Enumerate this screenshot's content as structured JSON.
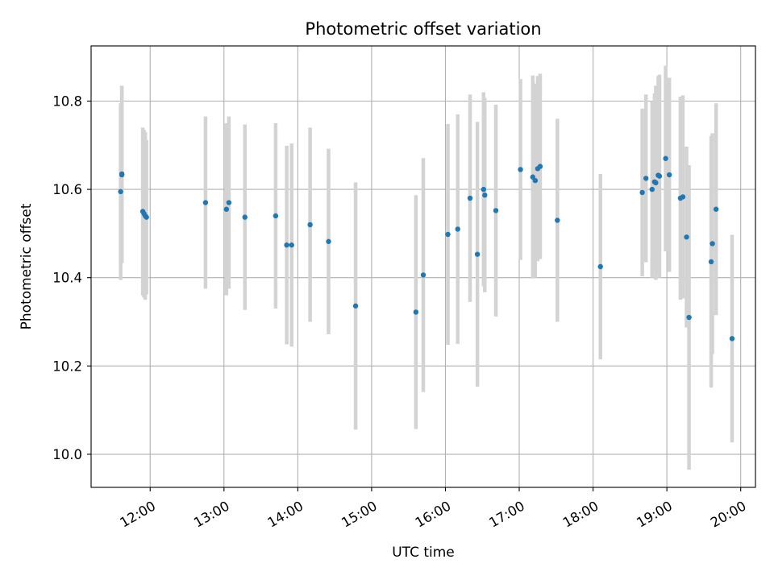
{
  "chart_data": {
    "type": "scatter",
    "title": "Photometric offset variation",
    "xlabel": "UTC time",
    "ylabel": "Photometric offset",
    "x_is_time": true,
    "xlim": [
      "11:12",
      "20:12"
    ],
    "ylim": [
      9.925,
      10.925
    ],
    "xticks": [
      "12:00",
      "13:00",
      "14:00",
      "15:00",
      "16:00",
      "17:00",
      "18:00",
      "19:00",
      "20:00"
    ],
    "yticks": [
      "10.0",
      "10.2",
      "10.4",
      "10.6",
      "10.8"
    ],
    "grid": true,
    "legend": "none",
    "colors": {
      "points": "#1f77b4",
      "errorbars": "#d3d3d3",
      "grid": "#b0b0b0",
      "axes": "#000000"
    },
    "series": [
      {
        "x": [
          "11:36",
          "11:37",
          "11:37",
          "11:54",
          "11:55",
          "11:56",
          "11:57",
          "12:45",
          "13:02",
          "13:04",
          "13:17",
          "13:42",
          "13:51",
          "13:55",
          "14:10",
          "14:25",
          "14:47",
          "15:36",
          "15:42",
          "16:02",
          "16:10",
          "16:20",
          "16:26",
          "16:31",
          "16:32",
          "16:41",
          "17:01",
          "17:11",
          "17:13",
          "17:15",
          "17:17",
          "17:31",
          "18:06",
          "18:40",
          "18:43",
          "18:48",
          "18:50",
          "18:51",
          "18:53",
          "18:54",
          "18:59",
          "19:02",
          "19:11",
          "19:13",
          "19:16",
          "19:18",
          "19:36",
          "19:37",
          "19:40",
          "19:53"
        ],
        "y": [
          10.595,
          10.633,
          10.635,
          10.55,
          10.545,
          10.54,
          10.537,
          10.57,
          10.555,
          10.57,
          10.537,
          10.54,
          10.474,
          10.474,
          10.52,
          10.482,
          10.336,
          10.322,
          10.406,
          10.498,
          10.51,
          10.58,
          10.453,
          10.6,
          10.587,
          10.552,
          10.645,
          10.628,
          10.62,
          10.647,
          10.652,
          10.53,
          10.425,
          10.593,
          10.625,
          10.6,
          10.617,
          10.615,
          10.632,
          10.63,
          10.67,
          10.633,
          10.58,
          10.583,
          10.492,
          10.31,
          10.436,
          10.477,
          10.555,
          10.262
        ],
        "yerr": [
          0.2,
          0.2,
          0.2,
          0.19,
          0.19,
          0.19,
          0.175,
          0.195,
          0.195,
          0.195,
          0.21,
          0.21,
          0.225,
          0.23,
          0.22,
          0.21,
          0.28,
          0.265,
          0.265,
          0.25,
          0.26,
          0.235,
          0.3,
          0.22,
          0.22,
          0.24,
          0.205,
          0.23,
          0.22,
          0.21,
          0.21,
          0.23,
          0.21,
          0.19,
          0.19,
          0.2,
          0.2,
          0.22,
          0.225,
          0.23,
          0.21,
          0.22,
          0.23,
          0.23,
          0.205,
          0.345,
          0.285,
          0.25,
          0.24,
          0.235
        ]
      }
    ]
  }
}
